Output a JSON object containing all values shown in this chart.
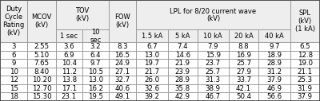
{
  "rows": [
    [
      "3",
      "2.55",
      "3.6",
      "3.2",
      "8.3",
      "6.7",
      "7.4",
      "7.9",
      "8.8",
      "9.7",
      "6.5"
    ],
    [
      "6",
      "5.10",
      "6.9",
      "6.4",
      "16.5",
      "13.0",
      "14.6",
      "15.9",
      "16.9",
      "18.9",
      "12.8"
    ],
    [
      "9",
      "7.65",
      "10.4",
      "9.7",
      "24.9",
      "19.7",
      "21.9",
      "23.7",
      "25.7",
      "28.9",
      "19.0"
    ],
    [
      "10",
      "8.40",
      "11.2",
      "10.5",
      "27.1",
      "21.7",
      "23.9",
      "25.7",
      "27.9",
      "31.2",
      "21.1"
    ],
    [
      "12",
      "10.20",
      "13.8",
      "13.0",
      "32.7",
      "26.0",
      "28.9",
      "31.3",
      "33.7",
      "37.9",
      "25.3"
    ],
    [
      "15",
      "12.70",
      "17.1",
      "16.2",
      "40.6",
      "32.6",
      "35.8",
      "38.9",
      "42.1",
      "46.9",
      "31.9"
    ],
    [
      "18",
      "15.30",
      "23.1",
      "19.5",
      "49.1",
      "39.2",
      "42.9",
      "46.7",
      "50.4",
      "56.6",
      "37.9"
    ]
  ],
  "lpl_subcols": [
    "1.5 kA",
    "5 kA",
    "10 kA",
    "20 kA",
    "40 kA"
  ],
  "tov_subcols": [
    "1 sec",
    "10\nsec"
  ],
  "header_bg": "#eeeeee",
  "border_color": "#888888",
  "text_color": "#000000"
}
